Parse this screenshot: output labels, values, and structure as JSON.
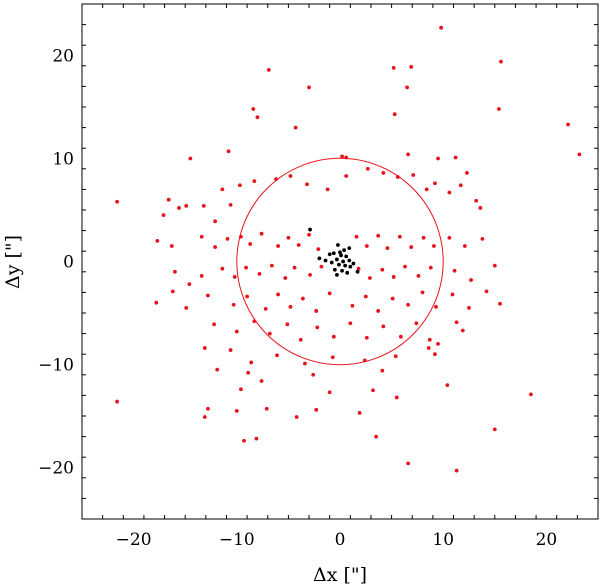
{
  "chart_data": {
    "type": "scatter",
    "title": "",
    "xlabel": "Δx [\"]",
    "ylabel": "Δy [\"]",
    "xlim": [
      -25,
      25
    ],
    "ylim": [
      -25,
      25
    ],
    "xticks": [
      -20,
      -10,
      0,
      10,
      20
    ],
    "yticks": [
      -20,
      -10,
      0,
      10,
      20
    ],
    "xtick_labels": [
      "−20",
      "−10",
      "0",
      "10",
      "20"
    ],
    "ytick_labels": [
      "−20",
      "−10",
      "0",
      "10",
      "20"
    ],
    "grid": false,
    "circle": {
      "center": [
        0,
        0
      ],
      "radius": 10,
      "color": "#e8141c"
    },
    "colors": {
      "outer": "#e8141c",
      "inner": "#000000"
    },
    "series": [
      {
        "color": "#e8141c",
        "points": [
          [
            9.8,
            22.7
          ],
          [
            -6.9,
            18.6
          ],
          [
            -3,
            16.9
          ],
          [
            5.2,
            18.8
          ],
          [
            6.9,
            18.9
          ],
          [
            15.6,
            19.4
          ],
          [
            6.5,
            16.9
          ],
          [
            22.1,
            13.3
          ],
          [
            23.2,
            10.4
          ],
          [
            -8.4,
            14.8
          ],
          [
            -8.0,
            14.0
          ],
          [
            -4.3,
            13.0
          ],
          [
            5.3,
            14.3
          ],
          [
            15.4,
            14.8
          ],
          [
            -14.5,
            10.0
          ],
          [
            -10.8,
            10.7
          ],
          [
            0.2,
            10.2
          ],
          [
            0.6,
            10.1
          ],
          [
            6.6,
            10.4
          ],
          [
            9.5,
            10.0
          ],
          [
            11.2,
            10.1
          ],
          [
            -21.6,
            5.8
          ],
          [
            -16.6,
            6.0
          ],
          [
            -17.1,
            4.5
          ],
          [
            -15.6,
            5.2
          ],
          [
            -14.9,
            5.4
          ],
          [
            -13.2,
            5.4
          ],
          [
            -12.1,
            3.9
          ],
          [
            -10.6,
            5.5
          ],
          [
            -11.4,
            7.0
          ],
          [
            -9.7,
            7.4
          ],
          [
            -8.3,
            7.8
          ],
          [
            -6.2,
            8.0
          ],
          [
            -4.8,
            8.3
          ],
          [
            -3.2,
            7.5
          ],
          [
            -1.2,
            7.0
          ],
          [
            0.6,
            8.3
          ],
          [
            2.7,
            9.0
          ],
          [
            4.2,
            8.6
          ],
          [
            5.6,
            8.2
          ],
          [
            7.1,
            8.4
          ],
          [
            8.4,
            7.0
          ],
          [
            9.2,
            7.6
          ],
          [
            10.6,
            6.7
          ],
          [
            11.7,
            7.4
          ],
          [
            12.3,
            8.6
          ],
          [
            13.2,
            5.9
          ],
          [
            13.6,
            5.2
          ],
          [
            -17.7,
            2.0
          ],
          [
            -16.3,
            1.5
          ],
          [
            -13.4,
            2.4
          ],
          [
            -12.1,
            1.4
          ],
          [
            -10.9,
            2.2
          ],
          [
            -9.6,
            2.4
          ],
          [
            -8.7,
            1.7
          ],
          [
            -7.6,
            2.7
          ],
          [
            -6.0,
            1.5
          ],
          [
            -5.0,
            2.3
          ],
          [
            -4.0,
            1.6
          ],
          [
            -3.0,
            2.6
          ],
          [
            -2.1,
            1.2
          ],
          [
            1.6,
            2.4
          ],
          [
            2.6,
            1.5
          ],
          [
            3.7,
            2.5
          ],
          [
            4.6,
            1.3
          ],
          [
            5.8,
            2.4
          ],
          [
            6.9,
            1.4
          ],
          [
            8.1,
            2.3
          ],
          [
            9.1,
            1.5
          ],
          [
            10.6,
            2.3
          ],
          [
            12.1,
            1.5
          ],
          [
            13.8,
            2.2
          ],
          [
            -16.0,
            -1.0
          ],
          [
            -14.6,
            -2.2
          ],
          [
            -13.4,
            -1.4
          ],
          [
            -11.4,
            -0.7
          ],
          [
            -10.2,
            -1.5
          ],
          [
            -9.1,
            -0.6
          ],
          [
            -7.8,
            -1.2
          ],
          [
            -6.6,
            -0.4
          ],
          [
            -5.3,
            -1.6
          ],
          [
            -4.4,
            -0.6
          ],
          [
            -2.9,
            -1.3
          ],
          [
            -1.8,
            -0.5
          ],
          [
            1.8,
            -0.7
          ],
          [
            2.9,
            -1.6
          ],
          [
            4.1,
            -0.8
          ],
          [
            5.2,
            -1.5
          ],
          [
            6.3,
            -0.5
          ],
          [
            7.6,
            -1.4
          ],
          [
            8.8,
            -0.6
          ],
          [
            11.1,
            -0.9
          ],
          [
            12.7,
            -1.8
          ],
          [
            15.0,
            -0.4
          ],
          [
            -17.8,
            -4.0
          ],
          [
            -16.2,
            -2.9
          ],
          [
            -12.8,
            -3.3
          ],
          [
            -10.3,
            -4.2
          ],
          [
            -9.0,
            -3.4
          ],
          [
            -7.2,
            -4.6
          ],
          [
            -6.0,
            -3.2
          ],
          [
            -4.8,
            -4.4
          ],
          [
            -3.6,
            -3.6
          ],
          [
            -2.3,
            -4.8
          ],
          [
            -1.0,
            -3.1
          ],
          [
            1.2,
            -4.3
          ],
          [
            2.5,
            -3.4
          ],
          [
            3.7,
            -4.8
          ],
          [
            5.1,
            -3.6
          ],
          [
            6.6,
            -4.2
          ],
          [
            8.0,
            -3.0
          ],
          [
            9.3,
            -4.4
          ],
          [
            10.9,
            -3.2
          ],
          [
            12.5,
            -4.5
          ],
          [
            14.2,
            -2.9
          ],
          [
            15.5,
            -4.1
          ],
          [
            -14.9,
            -4.5
          ],
          [
            -12.2,
            -6.1
          ],
          [
            -10.0,
            -6.8
          ],
          [
            -8.3,
            -5.8
          ],
          [
            -6.8,
            -7.0
          ],
          [
            -5.1,
            -6.1
          ],
          [
            -3.8,
            -7.6
          ],
          [
            -2.2,
            -6.4
          ],
          [
            -0.6,
            -7.3
          ],
          [
            1.0,
            -6.0
          ],
          [
            2.6,
            -7.4
          ],
          [
            4.2,
            -6.3
          ],
          [
            5.9,
            -7.3
          ],
          [
            7.4,
            -6.0
          ],
          [
            8.7,
            -7.6
          ],
          [
            11.3,
            -5.9
          ],
          [
            11.9,
            -6.7
          ],
          [
            -13.1,
            -8.4
          ],
          [
            -10.6,
            -8.6
          ],
          [
            -8.6,
            -9.8
          ],
          [
            -6.1,
            -9.1
          ],
          [
            -3.4,
            -9.9
          ],
          [
            -0.7,
            -9.3
          ],
          [
            2.4,
            -9.6
          ],
          [
            5.4,
            -9.2
          ],
          [
            8.6,
            -8.4
          ],
          [
            9.5,
            -8.0
          ],
          [
            9.2,
            -9.0
          ],
          [
            -11.9,
            -10.5
          ],
          [
            -8.9,
            -10.8
          ],
          [
            -2.6,
            -11.0
          ],
          [
            4.1,
            -10.6
          ],
          [
            -9.6,
            -12.4
          ],
          [
            -7.6,
            -11.6
          ],
          [
            -1.0,
            -12.7
          ],
          [
            3.2,
            -12.5
          ],
          [
            10.4,
            -12.0
          ],
          [
            18.5,
            -12.9
          ],
          [
            -21.6,
            -13.6
          ],
          [
            -12.8,
            -14.3
          ],
          [
            -10.0,
            -14.5
          ],
          [
            -7.1,
            -14.3
          ],
          [
            -2.3,
            -14.4
          ],
          [
            1.9,
            -14.7
          ],
          [
            5.5,
            -13.2
          ],
          [
            -13.1,
            -15.1
          ],
          [
            -4.2,
            -15.1
          ],
          [
            -9.3,
            -17.4
          ],
          [
            -8.1,
            -17.2
          ],
          [
            3.5,
            -17.0
          ],
          [
            15.0,
            -16.3
          ],
          [
            6.6,
            -19.6
          ],
          [
            11.3,
            -20.3
          ]
        ]
      },
      {
        "color": "#000000",
        "points": [
          [
            -0.2,
            1.6
          ],
          [
            0.4,
            1.1
          ],
          [
            0.9,
            1.3
          ],
          [
            -0.6,
            0.8
          ],
          [
            0.1,
            0.6
          ],
          [
            0.6,
            0.5
          ],
          [
            -0.3,
            0.2
          ],
          [
            0.3,
            0.0
          ],
          [
            0.9,
            0.1
          ],
          [
            -0.8,
            -0.1
          ],
          [
            -0.1,
            -0.3
          ],
          [
            0.5,
            -0.4
          ],
          [
            1.0,
            -0.5
          ],
          [
            -0.5,
            -0.8
          ],
          [
            0.2,
            -0.9
          ],
          [
            0.7,
            -1.1
          ],
          [
            -1.4,
            0.1
          ],
          [
            -2.0,
            0.3
          ],
          [
            1.7,
            -1.0
          ],
          [
            -2.9,
            3.1
          ],
          [
            -0.3,
            -1.3
          ],
          [
            0.0,
            0.9
          ],
          [
            1.3,
            -0.2
          ],
          [
            -1.0,
            0.7
          ]
        ]
      }
    ]
  }
}
